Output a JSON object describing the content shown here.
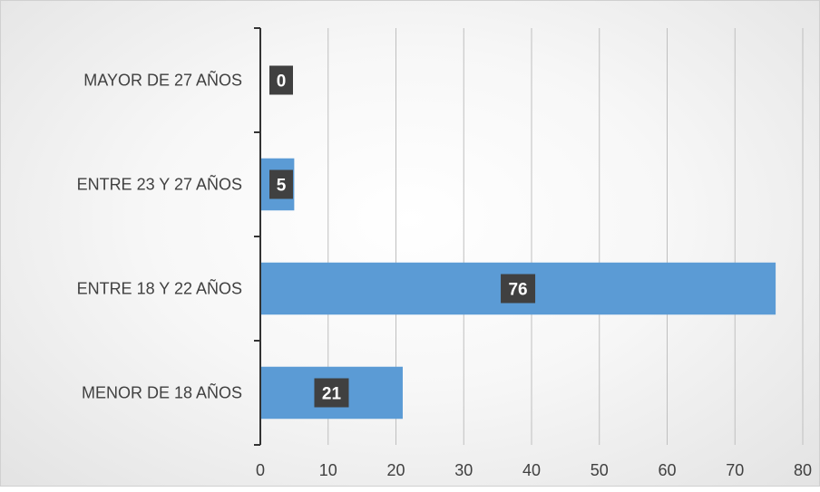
{
  "chart_data": {
    "type": "bar",
    "orientation": "horizontal",
    "categories": [
      "MENOR DE 18 AÑOS",
      "ENTRE 18 Y 22 AÑOS",
      "ENTRE 23 Y 27 AÑOS",
      "MAYOR DE 27 AÑOS"
    ],
    "values": [
      21,
      76,
      5,
      0
    ],
    "data_labels": [
      "21",
      "76",
      "5",
      "0"
    ],
    "x_ticks": [
      "0",
      "10",
      "20",
      "30",
      "40",
      "50",
      "60",
      "70",
      "80"
    ],
    "xlim": [
      0,
      80
    ],
    "grid": "vertical",
    "legend": "none",
    "title": "",
    "xlabel": "",
    "ylabel": "",
    "colors": {
      "bar": "#5b9bd5",
      "label_box": "#404040",
      "grid": "#bfbfbf",
      "axis": "#333333"
    }
  }
}
